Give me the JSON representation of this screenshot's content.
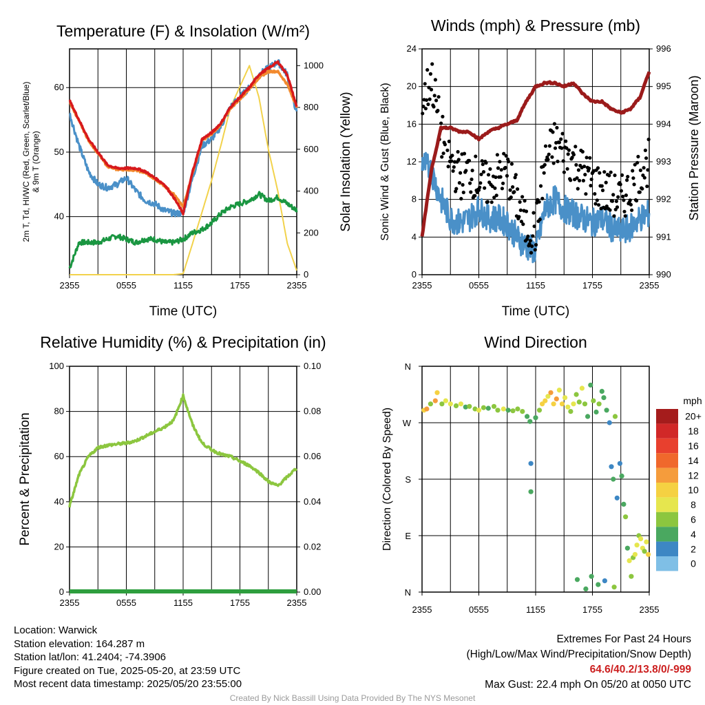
{
  "colors": {
    "t2m": "#d7191c",
    "heat_index": "#1a9641",
    "t9m": "#f28a2e",
    "dewpoint": "#4a90c8",
    "solar": "#f2d24b",
    "wind": "#4a90c8",
    "gust": "#000000",
    "pressure": "#9b1b1b",
    "rh": "#8cc63f",
    "precip": "#2e9e3e",
    "grid": "#000000"
  },
  "x_ticks": [
    "2355",
    "0555",
    "1155",
    "1755",
    "2355"
  ],
  "charts": [
    {
      "id": "temperature",
      "type": "line",
      "title": "Temperature (F) & Insolation (W/m²)",
      "xlabel": "Time (UTC)",
      "ylabel_left": "2m T, Td, HI/WC (Red, Green, Scarlet/Blue) & 9m T (Orange)",
      "ylabel_left_lines": [
        "2m T, Td, HI/WC (Red, Green, Scarlet/Blue)",
        "& 9m T (Orange)"
      ],
      "ylabel_right": "Solar Insolation (Yellow)",
      "ylim_left": [
        31,
        66
      ],
      "ylim_right": [
        0,
        1080
      ],
      "yticks_left": [
        "40",
        "50",
        "60"
      ],
      "yticks_right": [
        "0",
        "200",
        "400",
        "600",
        "800",
        "1000"
      ],
      "grid": true
    },
    {
      "id": "winds",
      "type": "line",
      "title": "Winds (mph) & Pressure (mb)",
      "xlabel": "Time (UTC)",
      "ylabel_left": "Sonic Wind & Gust (Blue, Black)",
      "ylabel_right": "Station Pressure (Maroon)",
      "ylim_left": [
        0,
        24
      ],
      "ylim_right": [
        990,
        996
      ],
      "yticks_left": [
        "0",
        "4",
        "8",
        "12",
        "16",
        "20",
        "24"
      ],
      "yticks_right": [
        "990",
        "991",
        "992",
        "993",
        "994",
        "995",
        "996"
      ],
      "grid": true
    },
    {
      "id": "humidity",
      "type": "line",
      "title": "Relative Humidity (%) & Precipitation (in)",
      "xlabel": "",
      "ylabel_left": "Percent & Precipitation",
      "ylabel_right": "",
      "ylim_left": [
        0,
        100
      ],
      "ylim_right": [
        0,
        0.1
      ],
      "yticks_left": [
        "0",
        "20",
        "40",
        "60",
        "80",
        "100"
      ],
      "yticks_right": [
        "0.00",
        "0.02",
        "0.04",
        "0.06",
        "0.08",
        "0.10"
      ],
      "grid": true
    },
    {
      "id": "direction",
      "type": "scatter",
      "title": "Wind Direction",
      "xlabel": "",
      "ylabel_left": "Direction (Colored By Speed)",
      "ylim_left": [
        0,
        360
      ],
      "yticks_left": [
        "N",
        "E",
        "S",
        "W",
        "N"
      ],
      "grid": true
    }
  ],
  "chart_data": [
    {
      "type": "line",
      "title": "Temperature (F) & Insolation (W/m²)",
      "x_unit": "hours since 2355 UTC",
      "series": [
        {
          "name": "2m T",
          "axis": "left",
          "x": [
            0,
            1,
            2,
            3,
            4,
            5,
            6,
            7,
            8,
            9,
            10,
            11,
            12,
            13,
            14,
            15,
            16,
            17,
            18,
            19,
            20,
            21,
            22,
            23,
            24
          ],
          "values": [
            58,
            55,
            52,
            50,
            48,
            47.5,
            47.5,
            47.5,
            47,
            46,
            45,
            43,
            40.5,
            47,
            52,
            53,
            54.5,
            57,
            58.5,
            60,
            62,
            63,
            64,
            62,
            57
          ]
        },
        {
          "name": "9m T",
          "axis": "left",
          "x": [
            0,
            1,
            2,
            3,
            4,
            5,
            6,
            7,
            8,
            9,
            10,
            11,
            12,
            13,
            14,
            15,
            16,
            17,
            18,
            19,
            20,
            21,
            22,
            23,
            24
          ],
          "values": [
            57.8,
            54.8,
            51.8,
            49.8,
            47.8,
            47.3,
            47.3,
            47.2,
            46.8,
            45.8,
            44.8,
            43.5,
            41.5,
            46.8,
            51.8,
            52.8,
            54.3,
            56.8,
            58.2,
            59.8,
            61.5,
            62.5,
            62.5,
            60.5,
            57
          ]
        },
        {
          "name": "Dewpoint",
          "axis": "left",
          "x": [
            0,
            1,
            2,
            3,
            4,
            5,
            6,
            7,
            8,
            9,
            10,
            11,
            12,
            13,
            14,
            15,
            16,
            17,
            18,
            19,
            20,
            21,
            22,
            23,
            24
          ],
          "values": [
            32,
            36,
            36,
            36,
            36.5,
            37,
            36.5,
            36,
            36.5,
            36.5,
            36,
            36,
            36.5,
            37.5,
            38,
            39,
            40.5,
            41.5,
            42,
            42.5,
            43.5,
            42.5,
            43,
            42,
            41
          ]
        },
        {
          "name": "HI/WC",
          "axis": "left",
          "x": [
            0,
            1,
            2,
            3,
            4,
            5,
            6,
            7,
            8,
            9,
            10,
            11,
            12,
            13,
            14,
            15,
            16,
            17,
            18,
            19,
            20,
            21,
            22,
            23,
            24
          ],
          "values": [
            56,
            51,
            47,
            45,
            44.5,
            45,
            46,
            44,
            42.5,
            42,
            41,
            40.5,
            40.5,
            46,
            51,
            52,
            54,
            57,
            58.5,
            60,
            62,
            63,
            64,
            62,
            56
          ]
        },
        {
          "name": "Solar Insolation",
          "axis": "right",
          "x": [
            0,
            1,
            2,
            3,
            4,
            5,
            6,
            7,
            8,
            9,
            10,
            11,
            12,
            13,
            14,
            15,
            16,
            17,
            18,
            19,
            20,
            21,
            22,
            23,
            24
          ],
          "values": [
            0,
            0,
            0,
            0,
            0,
            0,
            0,
            0,
            0,
            0,
            0,
            0,
            5,
            150,
            300,
            450,
            620,
            800,
            900,
            1000,
            850,
            600,
            400,
            150,
            20
          ]
        }
      ]
    },
    {
      "type": "line",
      "title": "Winds (mph) & Pressure (mb)",
      "x_unit": "hours since 2355 UTC",
      "series": [
        {
          "name": "Sonic Wind",
          "axis": "left",
          "x": [
            0,
            1,
            2,
            3,
            4,
            5,
            6,
            7,
            8,
            9,
            10,
            11,
            12,
            13,
            14,
            15,
            16,
            17,
            18,
            19,
            20,
            21,
            22,
            23,
            24
          ],
          "values": [
            12,
            11,
            8,
            6,
            5.5,
            6,
            7,
            6,
            6,
            5.5,
            4,
            3,
            2.5,
            7,
            8,
            7,
            6.5,
            6,
            5.5,
            6,
            5,
            4.5,
            5,
            6,
            6.5
          ]
        },
        {
          "name": "Gust",
          "axis": "left",
          "x": [
            0,
            1,
            2,
            3,
            4,
            5,
            6,
            7,
            8,
            9,
            10,
            11,
            12,
            13,
            14,
            15,
            16,
            17,
            18,
            19,
            20,
            21,
            22,
            23,
            24
          ],
          "values": [
            18,
            21,
            15,
            12,
            10.5,
            11,
            10,
            9.5,
            10.5,
            11,
            8,
            5,
            4.5,
            12,
            14,
            13,
            12,
            11,
            10,
            9,
            8.5,
            8,
            9,
            11,
            12
          ]
        },
        {
          "name": "Station Pressure",
          "axis": "right",
          "x": [
            0,
            1,
            2,
            3,
            4,
            5,
            6,
            7,
            8,
            9,
            10,
            11,
            12,
            13,
            14,
            15,
            16,
            17,
            18,
            19,
            20,
            21,
            22,
            23,
            24
          ],
          "values": [
            991.0,
            992.8,
            993.9,
            993.9,
            993.8,
            993.8,
            993.6,
            993.8,
            993.9,
            994.0,
            994.1,
            994.6,
            995.0,
            995.1,
            995.1,
            995.0,
            995.1,
            994.8,
            994.6,
            994.6,
            994.4,
            994.3,
            994.4,
            994.7,
            995.4
          ]
        }
      ]
    },
    {
      "type": "line",
      "title": "Relative Humidity (%) & Precipitation (in)",
      "x_unit": "hours since 2355 UTC",
      "series": [
        {
          "name": "Relative Humidity",
          "axis": "left",
          "x": [
            0,
            1,
            2,
            3,
            4,
            5,
            6,
            7,
            8,
            9,
            10,
            11,
            12,
            13,
            14,
            15,
            16,
            17,
            18,
            19,
            20,
            21,
            22,
            23,
            24
          ],
          "values": [
            38,
            52,
            60,
            64,
            65,
            65.5,
            66,
            67,
            69,
            71,
            73,
            76,
            87,
            74,
            66,
            63,
            61,
            60,
            58,
            56,
            53,
            49,
            47,
            51,
            55
          ]
        },
        {
          "name": "Precipitation",
          "axis": "right",
          "x": [
            0,
            24
          ],
          "values": [
            0,
            0
          ]
        }
      ]
    },
    {
      "type": "scatter",
      "title": "Wind Direction",
      "x_unit": "hours since 2355 UTC",
      "y_unit": "degrees (N=0, E=90, S=180, W=270)",
      "points": [
        [
          0.2,
          290,
          9
        ],
        [
          0.5,
          292,
          12
        ],
        [
          0.9,
          300,
          6
        ],
        [
          1.4,
          305,
          11
        ],
        [
          1.6,
          318,
          9
        ],
        [
          2.1,
          300,
          6
        ],
        [
          2.5,
          305,
          7
        ],
        [
          3.0,
          300,
          8
        ],
        [
          3.6,
          297,
          5
        ],
        [
          4.1,
          300,
          7
        ],
        [
          4.6,
          295,
          4
        ],
        [
          5.0,
          296,
          6
        ],
        [
          5.6,
          292,
          5
        ],
        [
          6.0,
          290,
          7
        ],
        [
          6.5,
          294,
          6
        ],
        [
          7.0,
          293,
          4
        ],
        [
          7.6,
          296,
          6
        ],
        [
          8.0,
          290,
          5
        ],
        [
          8.6,
          292,
          7
        ],
        [
          9.1,
          290,
          4
        ],
        [
          9.6,
          289,
          5
        ],
        [
          10.1,
          292,
          6
        ],
        [
          10.6,
          288,
          5
        ],
        [
          11.1,
          280,
          3
        ],
        [
          11.4,
          272,
          4
        ],
        [
          11.5,
          205,
          2
        ],
        [
          11.5,
          160,
          3
        ],
        [
          12.0,
          278,
          4
        ],
        [
          12.4,
          290,
          6
        ],
        [
          12.7,
          300,
          10
        ],
        [
          13.0,
          305,
          9
        ],
        [
          13.3,
          312,
          8
        ],
        [
          13.6,
          318,
          12
        ],
        [
          13.9,
          300,
          10
        ],
        [
          14.2,
          308,
          11
        ],
        [
          14.5,
          322,
          8
        ],
        [
          14.8,
          300,
          9
        ],
        [
          15.1,
          310,
          7
        ],
        [
          15.4,
          295,
          8
        ],
        [
          15.7,
          288,
          6
        ],
        [
          16.0,
          300,
          8
        ],
        [
          16.3,
          315,
          5
        ],
        [
          16.6,
          303,
          6
        ],
        [
          16.9,
          325,
          7
        ],
        [
          17.2,
          300,
          6
        ],
        [
          17.5,
          280,
          4
        ],
        [
          17.8,
          330,
          4
        ],
        [
          18.1,
          305,
          6
        ],
        [
          18.4,
          287,
          3
        ],
        [
          18.7,
          300,
          5
        ],
        [
          19.0,
          320,
          3
        ],
        [
          19.2,
          310,
          4
        ],
        [
          19.5,
          290,
          3
        ],
        [
          19.8,
          270,
          2
        ],
        [
          20.0,
          200,
          2
        ],
        [
          20.2,
          180,
          3
        ],
        [
          20.4,
          280,
          5
        ],
        [
          20.6,
          150,
          2
        ],
        [
          20.9,
          205,
          2
        ],
        [
          21.1,
          185,
          3
        ],
        [
          21.3,
          140,
          4
        ],
        [
          21.5,
          120,
          5
        ],
        [
          21.7,
          70,
          4
        ],
        [
          21.9,
          50,
          7
        ],
        [
          22.1,
          25,
          5
        ],
        [
          22.3,
          55,
          6
        ],
        [
          22.5,
          60,
          7
        ],
        [
          22.7,
          75,
          8
        ],
        [
          22.9,
          90,
          6
        ],
        [
          23.1,
          85,
          7
        ],
        [
          23.3,
          70,
          8
        ],
        [
          23.5,
          65,
          6
        ],
        [
          23.7,
          80,
          7
        ],
        [
          23.9,
          60,
          9
        ],
        [
          16.4,
          20,
          4
        ],
        [
          17.3,
          5,
          4
        ],
        [
          17.9,
          25,
          3
        ],
        [
          18.6,
          12,
          3
        ],
        [
          19.3,
          18,
          2
        ],
        [
          20.3,
          8,
          5
        ]
      ],
      "colorbar": {
        "title": "mph",
        "labels": [
          "20+",
          "18",
          "16",
          "14",
          "12",
          "10",
          "8",
          "6",
          "4",
          "2",
          "0"
        ],
        "colors": [
          "#a51c1c",
          "#d12828",
          "#e8402e",
          "#f0682c",
          "#f59c3c",
          "#f5d142",
          "#e6e64e",
          "#8cc63f",
          "#4aa860",
          "#3d87c4",
          "#7fbfe6",
          "#c3e6f7"
        ]
      }
    }
  ],
  "info": {
    "location": "Location: Warwick",
    "elevation": "Station elevation: 164.287 m",
    "latlon": "Station lat/lon: 41.2404; -74.3906",
    "created": "Figure created on Tue, 2025-05-20, at 23:59 UTC",
    "recent": "Most recent data timestamp: 2025/05/20 23:55:00"
  },
  "extremes": {
    "title": "Extremes For Past 24 Hours",
    "subtitle": "(High/Low/Max Wind/Precipitation/Snow Depth)",
    "values": "64.6/40.2/13.8/0/-999",
    "gust": "Max Gust: 22.4 mph On 05/20 at 0050 UTC"
  },
  "credit": "Created By Nick Bassill Using Data Provided By The NYS Mesonet"
}
